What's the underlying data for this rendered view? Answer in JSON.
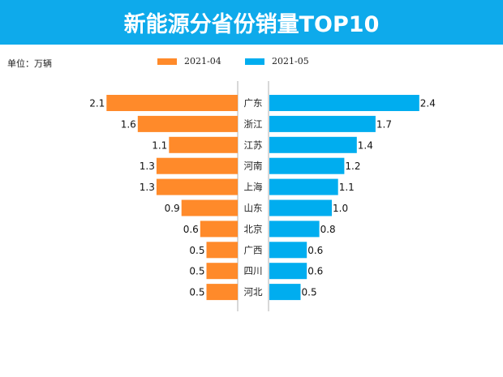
{
  "header": {
    "title": "新能源分省份销量TOP10"
  },
  "unit_label": "单位：万辆",
  "colors": {
    "header_bg": "#0EAAEB",
    "series_left": "#FF8A2A",
    "series_right": "#00ADEF",
    "axis": "#b0b0b0"
  },
  "chart_data": {
    "type": "bar",
    "orientation": "horizontal-butterfly",
    "title": "新能源分省份销量TOP10",
    "unit": "万辆",
    "legend_position": "top-center",
    "categories": [
      "广东",
      "浙江",
      "江苏",
      "河南",
      "上海",
      "山东",
      "北京",
      "广西",
      "四川",
      "河北"
    ],
    "series": [
      {
        "name": "2021-04",
        "side": "left",
        "values": [
          2.1,
          1.6,
          1.1,
          1.3,
          1.3,
          0.9,
          0.6,
          0.5,
          0.5,
          0.5
        ],
        "labels": [
          "2.1",
          "1.6",
          "1.1",
          "1.3",
          "1.3",
          "0.9",
          "0.6",
          "0.5",
          "0.5",
          "0.5"
        ]
      },
      {
        "name": "2021-05",
        "side": "right",
        "values": [
          2.4,
          1.7,
          1.4,
          1.2,
          1.1,
          1.0,
          0.8,
          0.6,
          0.6,
          0.5
        ],
        "labels": [
          "2.4",
          "1.7",
          "1.4",
          "1.2",
          "1.1",
          "1.0",
          "0.8",
          "0.6",
          "0.6",
          "0.5"
        ]
      }
    ],
    "grid": false
  }
}
